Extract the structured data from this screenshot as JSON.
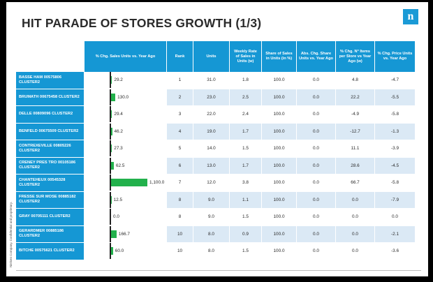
{
  "title": "HIT PARADE OF STORES GROWTH  (1/3)",
  "logo_letter": "n",
  "side_note": "Nielsen Company. Confidential and proprietary.",
  "columns": [
    "% Chg. Sales Units vs. Year Ago",
    "Rank",
    "Units",
    "Weekly Rate of Sales in Units (w)",
    "Share of Sales in Units (in %)",
    "Abs. Chg. Share Units vs. Year Ago",
    "% Chg. N° Items per Store vs Year Ago (w)",
    "% Chg. Price Units vs. Year Ago"
  ],
  "rows": [
    {
      "store": "BASSE HAM 00575806 CLUSTER2",
      "pct_chg": "29.2",
      "pct_value": 29.2,
      "rank": "1",
      "units": "31.0",
      "rate": "1.8",
      "share": "100.0",
      "abs_chg": "0.0",
      "items": "4.8",
      "price": "-4.7"
    },
    {
      "store": "BRUMATH 00675458 CLUSTER2",
      "pct_chg": "130.0",
      "pct_value": 130.0,
      "rank": "2",
      "units": "23.0",
      "rate": "2.5",
      "share": "100.0",
      "abs_chg": "0.0",
      "items": "22.2",
      "price": "-5.5"
    },
    {
      "store": "DELLE 00809096 CLUSTER2",
      "pct_chg": "29.4",
      "pct_value": 29.4,
      "rank": "3",
      "units": "22.0",
      "rate": "2.4",
      "share": "100.0",
      "abs_chg": "0.0",
      "items": "-4.9",
      "price": "-5.8"
    },
    {
      "store": "BENFELD 00675509 CLUSTER2",
      "pct_chg": "46.2",
      "pct_value": 46.2,
      "rank": "4",
      "units": "19.0",
      "rate": "1.7",
      "share": "100.0",
      "abs_chg": "0.0",
      "items": "-12.7",
      "price": "-1.3"
    },
    {
      "store": "CONTREXEVILLE 00805226 CLUSTER2",
      "pct_chg": "27.3",
      "pct_value": 27.3,
      "rank": "5",
      "units": "14.0",
      "rate": "1.5",
      "share": "100.0",
      "abs_chg": "0.0",
      "items": "11.1",
      "price": "-3.9"
    },
    {
      "store": "CRENEY PRES TRO 00105186 CLUSTER2",
      "pct_chg": "62.5",
      "pct_value": 62.5,
      "rank": "6",
      "units": "13.0",
      "rate": "1.7",
      "share": "100.0",
      "abs_chg": "0.0",
      "items": "28.6",
      "price": "-4.5"
    },
    {
      "store": "CHANTEHEUX 00545328 CLUSTER2",
      "pct_chg": "1,100.0",
      "pct_value": 1100.0,
      "rank": "7",
      "units": "12.0",
      "rate": "3.8",
      "share": "100.0",
      "abs_chg": "0.0",
      "items": "66.7",
      "price": "-5.8"
    },
    {
      "store": "FRESSE SUR MOSE 00885182 CLUSTER2",
      "pct_chg": "12.5",
      "pct_value": 12.5,
      "rank": "8",
      "units": "9.0",
      "rate": "1.1",
      "share": "100.0",
      "abs_chg": "0.0",
      "items": "0.0",
      "price": "-7.9"
    },
    {
      "store": "GRAY 00705111 CLUSTER2",
      "pct_chg": "0.0",
      "pct_value": 0.0,
      "rank": "8",
      "units": "9.0",
      "rate": "1.5",
      "share": "100.0",
      "abs_chg": "0.0",
      "items": "0.0",
      "price": "0.0"
    },
    {
      "store": "GERARDMER 00885186 CLUSTER2",
      "pct_chg": "166.7",
      "pct_value": 166.7,
      "rank": "10",
      "units": "8.0",
      "rate": "0.9",
      "share": "100.0",
      "abs_chg": "0.0",
      "items": "0.0",
      "price": "-2.1"
    },
    {
      "store": "BITCHE 00575621 CLUSTER2",
      "pct_chg": "60.0",
      "pct_value": 60.0,
      "rank": "10",
      "units": "8.0",
      "rate": "1.5",
      "share": "100.0",
      "abs_chg": "0.0",
      "items": "0.0",
      "price": "-3.6"
    }
  ],
  "bar_max": 1100.0,
  "colors": {
    "header": "#1597d4",
    "bar": "#22b14c",
    "stripe": "#dbe9f5"
  }
}
